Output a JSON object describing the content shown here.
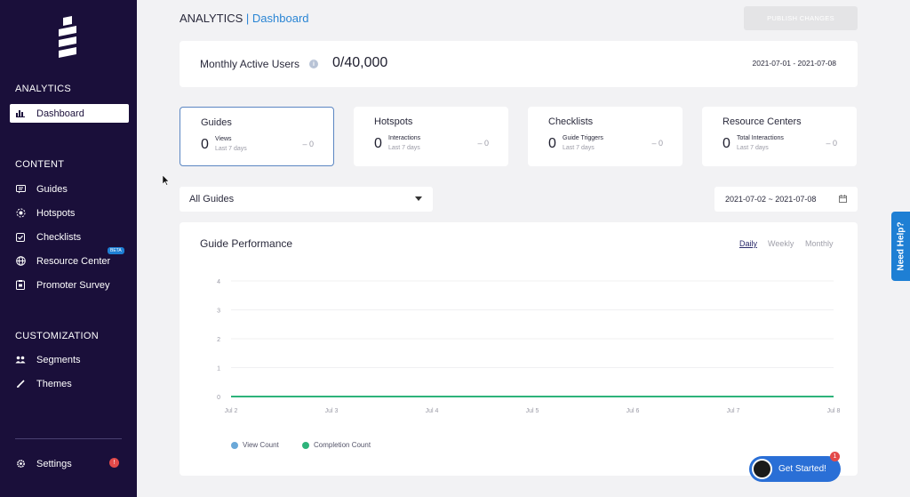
{
  "sidebar": {
    "sections": {
      "analytics": "ANALYTICS",
      "content": "CONTENT",
      "customization": "CUSTOMIZATION"
    },
    "items": {
      "dashboard": "Dashboard",
      "guides": "Guides",
      "hotspots": "Hotspots",
      "checklists": "Checklists",
      "resource_center": "Resource Center",
      "promoter_survey": "Promoter Survey",
      "segments": "Segments",
      "themes": "Themes",
      "settings": "Settings"
    },
    "beta_badge": "BETA",
    "settings_badge": "!"
  },
  "header": {
    "section": "ANALYTICS",
    "separator": "|",
    "page": "Dashboard",
    "publish_label": "PUBLISH CHANGES"
  },
  "mau": {
    "label": "Monthly Active Users",
    "info": "i",
    "value": "0/40,000",
    "date_range": "2021-07-01 - 2021-07-08"
  },
  "stats": [
    {
      "title": "Guides",
      "value": "0",
      "metric": "Views",
      "sub": "Last 7 days",
      "trend": "– 0"
    },
    {
      "title": "Hotspots",
      "value": "0",
      "metric": "Interactions",
      "sub": "Last 7 days",
      "trend": "– 0"
    },
    {
      "title": "Checklists",
      "value": "0",
      "metric": "Guide Triggers",
      "sub": "Last 7 days",
      "trend": "– 0"
    },
    {
      "title": "Resource Centers",
      "value": "0",
      "metric": "Total Interactions",
      "sub": "Last 7 days",
      "trend": "– 0"
    }
  ],
  "filters": {
    "guide_select": "All Guides",
    "date_range": "2021-07-02 ~ 2021-07-08"
  },
  "chart": {
    "title": "Guide Performance",
    "periods": {
      "daily": "Daily",
      "weekly": "Weekly",
      "monthly": "Monthly"
    }
  },
  "chart_data": {
    "type": "line",
    "title": "Guide Performance",
    "x": [
      "Jul 2",
      "Jul 3",
      "Jul 4",
      "Jul 5",
      "Jul 6",
      "Jul 7",
      "Jul 8"
    ],
    "yticks": [
      0,
      1,
      2,
      3,
      4
    ],
    "ylim": [
      0,
      4
    ],
    "series": [
      {
        "name": "View Count",
        "values": [
          0,
          0,
          0,
          0,
          0,
          0,
          0
        ],
        "color": "#6aa8d8"
      },
      {
        "name": "Completion Count",
        "values": [
          0,
          0,
          0,
          0,
          0,
          0,
          0
        ],
        "color": "#2db37a"
      }
    ],
    "legend": "bottom-left",
    "grid": true
  },
  "help": {
    "label": "Need Help?"
  },
  "get_started": {
    "label": "Get Started!",
    "badge": "1"
  },
  "colors": {
    "sidebar_bg": "#1a0f3a",
    "accent": "#1e7fd4",
    "selected_border": "#5b86c2",
    "view_count": "#6aa8d8",
    "completion_count": "#2db37a"
  }
}
